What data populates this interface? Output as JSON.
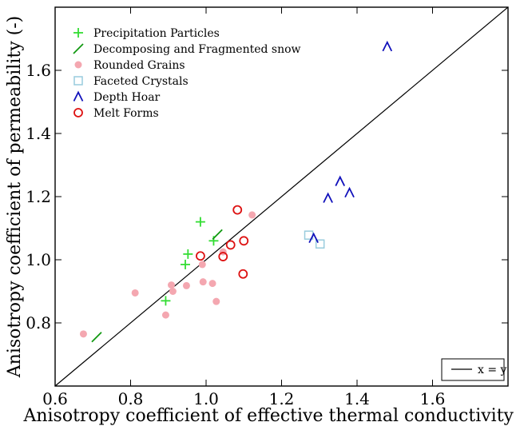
{
  "chart_data": {
    "type": "scatter",
    "xlabel": "Anisotropy coefficient of effective thermal conductivity (-)",
    "ylabel": "Anisotropy coefficient of permeability (-)",
    "xlim": [
      0.6,
      1.8
    ],
    "ylim": [
      0.6,
      1.8
    ],
    "xticks": [
      "0.6",
      "0.8",
      "1.0",
      "1.2",
      "1.4",
      "1.6"
    ],
    "yticks": [
      "0.8",
      "1.0",
      "1.2",
      "1.4",
      "1.6"
    ],
    "xtick_values": [
      0.6,
      0.8,
      1.0,
      1.2,
      1.4,
      1.6
    ],
    "ytick_values": [
      0.8,
      1.0,
      1.2,
      1.4,
      1.6
    ],
    "grid": false,
    "legend_position": "top-left",
    "reference_line": {
      "label": "x = y",
      "legend_position": "bottom-right",
      "color": "#000000"
    },
    "series": [
      {
        "name": "Precipitation Particles",
        "marker": "plus",
        "color": "#33dd33",
        "points": [
          [
            0.893,
            0.87
          ],
          [
            0.945,
            0.985
          ],
          [
            0.952,
            1.018
          ],
          [
            0.985,
            1.12
          ],
          [
            1.02,
            1.06
          ]
        ]
      },
      {
        "name": "Decomposing and Fragmented snow",
        "marker": "slash",
        "color": "#119911",
        "points": [
          [
            0.71,
            0.755
          ],
          [
            1.03,
            1.08
          ]
        ]
      },
      {
        "name": "Rounded Grains",
        "marker": "dot",
        "color": "#f4a7b0",
        "points": [
          [
            0.675,
            0.765
          ],
          [
            0.812,
            0.895
          ],
          [
            0.893,
            0.825
          ],
          [
            0.908,
            0.92
          ],
          [
            0.912,
            0.9
          ],
          [
            0.948,
            0.918
          ],
          [
            0.99,
            0.985
          ],
          [
            0.992,
            0.93
          ],
          [
            1.017,
            0.925
          ],
          [
            1.027,
            0.868
          ],
          [
            1.045,
            1.025
          ],
          [
            1.122,
            1.142
          ]
        ]
      },
      {
        "name": "Faceted Crystals",
        "marker": "square",
        "color": "#99ccdd",
        "points": [
          [
            1.272,
            1.078
          ],
          [
            1.302,
            1.05
          ]
        ]
      },
      {
        "name": "Depth Hoar",
        "marker": "caret",
        "color": "#1111bb",
        "points": [
          [
            1.285,
            1.068
          ],
          [
            1.323,
            1.195
          ],
          [
            1.355,
            1.248
          ],
          [
            1.38,
            1.212
          ],
          [
            1.48,
            1.675
          ]
        ]
      },
      {
        "name": "Melt Forms",
        "marker": "circle",
        "color": "#dd1111",
        "points": [
          [
            0.985,
            1.012
          ],
          [
            1.045,
            1.01
          ],
          [
            1.065,
            1.047
          ],
          [
            1.083,
            1.158
          ],
          [
            1.098,
            0.955
          ],
          [
            1.1,
            1.06
          ]
        ]
      }
    ]
  }
}
